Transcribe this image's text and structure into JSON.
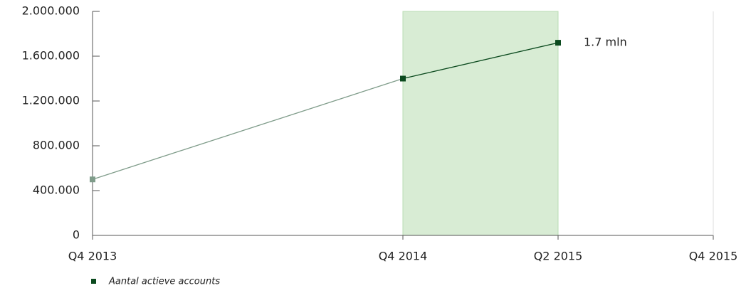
{
  "chart_data": {
    "type": "line",
    "categories": [
      "Q4 2013",
      "Q4 2014",
      "Q2 2015",
      "Q4 2015"
    ],
    "series": [
      {
        "name": "Aantal actieve accounts",
        "color": "#0b4a1e",
        "faded_color": "#7f9c8a",
        "values": [
          500000,
          1400000,
          1720000,
          null
        ],
        "value_labels": [
          null,
          null,
          "1.7 mln",
          null
        ]
      }
    ],
    "highlight_range": [
      1,
      2
    ],
    "highlight_color": "#d8ecd4",
    "ylim": [
      0,
      2000000
    ],
    "yticks": [
      0,
      {
        "value": 400000,
        "label": "400.000"
      },
      {
        "value": 800000,
        "label": "800.000"
      },
      {
        "value": 1200000,
        "label": "1.200.000"
      },
      {
        "value": 1600000,
        "label": "1.600.000"
      },
      {
        "value": 2000000,
        "label": "2.000.000"
      }
    ]
  }
}
